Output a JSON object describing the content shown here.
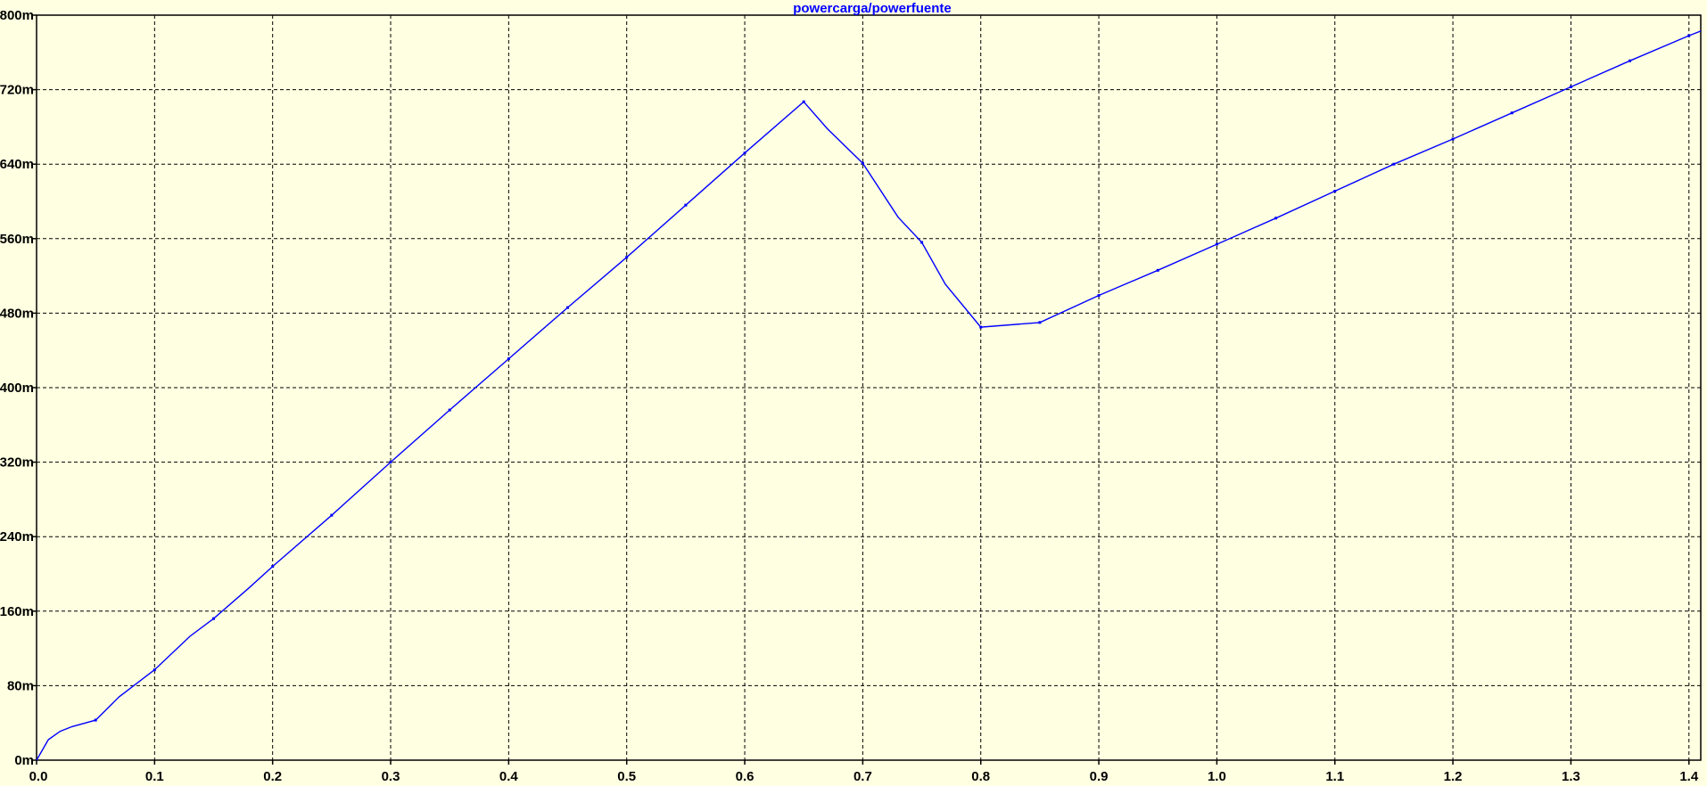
{
  "chart_data": {
    "type": "line",
    "title": "powercarga/powerfuente",
    "xlabel": "",
    "ylabel": "",
    "xlim": [
      0.0,
      1.41
    ],
    "ylim": [
      0,
      0.8
    ],
    "grid": true,
    "x_ticks": [
      "0.0",
      "0.1",
      "0.2",
      "0.3",
      "0.4",
      "0.5",
      "0.6",
      "0.7",
      "0.8",
      "0.9",
      "1.0",
      "1.1",
      "1.2",
      "1.3",
      "1.4"
    ],
    "y_ticks": [
      "0m",
      "80m",
      "160m",
      "240m",
      "320m",
      "400m",
      "480m",
      "560m",
      "640m",
      "720m",
      "800m"
    ],
    "series_color": "#0000ff",
    "background_color": "#ffffe1",
    "series": [
      {
        "x": [
          0.0,
          0.01,
          0.02,
          0.03,
          0.05,
          0.07,
          0.1,
          0.13,
          0.15,
          0.18,
          0.2,
          0.25,
          0.3,
          0.35,
          0.4,
          0.45,
          0.5,
          0.55,
          0.6,
          0.65,
          0.67,
          0.7,
          0.73,
          0.75,
          0.77,
          0.8,
          0.85,
          0.9,
          0.95,
          1.0,
          1.05,
          1.1,
          1.15,
          1.2,
          1.25,
          1.3,
          1.35,
          1.4,
          1.41
        ],
        "y": [
          0.0,
          0.022,
          0.031,
          0.036,
          0.043,
          0.068,
          0.097,
          0.133,
          0.152,
          0.185,
          0.208,
          0.263,
          0.32,
          0.376,
          0.431,
          0.486,
          0.54,
          0.596,
          0.652,
          0.707,
          0.678,
          0.641,
          0.583,
          0.556,
          0.511,
          0.465,
          0.47,
          0.499,
          0.526,
          0.554,
          0.582,
          0.611,
          0.64,
          0.667,
          0.695,
          0.723,
          0.751,
          0.778,
          0.783
        ],
        "markers_x": [
          0.05,
          0.1,
          0.15,
          0.2,
          0.25,
          0.3,
          0.35,
          0.4,
          0.45,
          0.5,
          0.55,
          0.6,
          0.65,
          0.7,
          0.75,
          0.8,
          0.85,
          0.9,
          0.95,
          1.0,
          1.05,
          1.1,
          1.15,
          1.2,
          1.25,
          1.3,
          1.35,
          1.4
        ]
      }
    ]
  }
}
